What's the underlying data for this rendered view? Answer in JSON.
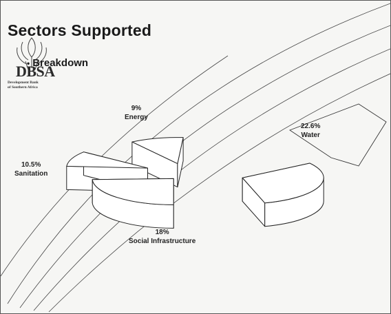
{
  "slide": {
    "title": "Sectors Supported",
    "bullet": "Breakdown"
  },
  "logo": {
    "abbr": "DBSA",
    "line1": "Development Bank",
    "line2": "of Southern Africa"
  },
  "chart_data": {
    "type": "pie",
    "style": "exploded 3d",
    "title": "Sectors Supported",
    "subtitle": "Breakdown",
    "slices": [
      {
        "label": "Energy",
        "value": 9,
        "value_label": "9%"
      },
      {
        "label": "Water",
        "value": 22.6,
        "value_label": "22.6%"
      },
      {
        "label": "Social Infrastructure",
        "value": 18,
        "value_label": "18%"
      },
      {
        "label": "Sanitation",
        "value": 10.5,
        "value_label": "10.5%"
      }
    ],
    "colors": {
      "fill": "#ffffff",
      "stroke": "#222222"
    }
  }
}
